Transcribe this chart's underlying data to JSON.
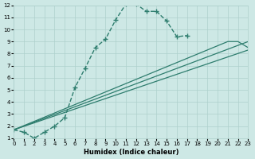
{
  "xlabel": "Humidex (Indice chaleur)",
  "xlim": [
    0,
    23
  ],
  "ylim": [
    1,
    12
  ],
  "xticks": [
    0,
    1,
    2,
    3,
    4,
    5,
    6,
    7,
    8,
    9,
    10,
    11,
    12,
    13,
    14,
    15,
    16,
    17,
    18,
    19,
    20,
    21,
    22,
    23
  ],
  "yticks": [
    1,
    2,
    3,
    4,
    5,
    6,
    7,
    8,
    9,
    10,
    11,
    12
  ],
  "bg_color": "#cde8e5",
  "line_color": "#2e7d6e",
  "grid_color": "#aed0cc",
  "series_main": {
    "x": [
      0,
      1,
      2,
      3,
      4,
      5,
      6,
      7,
      8,
      9,
      10,
      11,
      12,
      13,
      14,
      15,
      16,
      17
    ],
    "y": [
      1.7,
      1.5,
      1.0,
      1.5,
      2.0,
      2.7,
      5.2,
      6.8,
      8.5,
      9.2,
      10.8,
      12.1,
      12.1,
      11.5,
      11.5,
      10.7,
      9.4,
      9.5
    ]
  },
  "series_lines": [
    {
      "x": [
        0,
        23
      ],
      "y": [
        1.7,
        8.3
      ]
    },
    {
      "x": [
        0,
        23
      ],
      "y": [
        1.7,
        9.0
      ]
    },
    {
      "x": [
        0,
        21,
        22,
        23
      ],
      "y": [
        1.7,
        9.0,
        9.0,
        8.5
      ]
    }
  ]
}
